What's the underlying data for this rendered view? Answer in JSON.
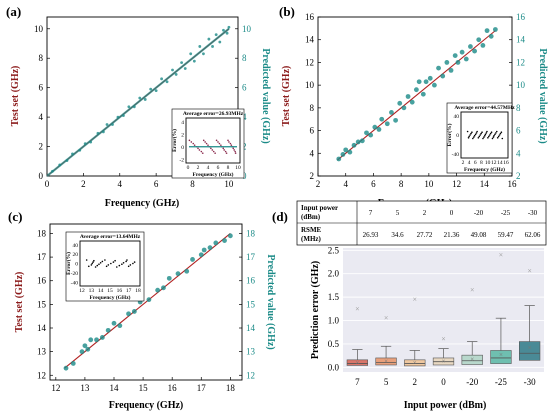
{
  "colors": {
    "red": "#8b1a1a",
    "teal": "#1a8a87",
    "line": "#b22222"
  },
  "chart_data": [
    {
      "panel": "(a)",
      "type": "scatter",
      "xlabel": "Frequency (GHz)",
      "ylabel": "Test set (GHz)",
      "ylabel_right": "Predicted value (GHz)",
      "xlim": [
        0,
        10.5
      ],
      "ylim": [
        0,
        10.8
      ],
      "xticks": [
        0,
        2,
        4,
        6,
        8,
        10
      ],
      "yticks": [
        0,
        2,
        4,
        6,
        8,
        10
      ],
      "ref_line": [
        [
          0,
          0
        ],
        [
          10,
          10
        ]
      ],
      "points": [
        [
          0.3,
          0.32
        ],
        [
          0.7,
          0.75
        ],
        [
          1.1,
          1.05
        ],
        [
          1.4,
          1.5
        ],
        [
          1.8,
          1.75
        ],
        [
          2.1,
          2.2
        ],
        [
          2.4,
          2.3
        ],
        [
          2.8,
          2.9
        ],
        [
          3.1,
          3.0
        ],
        [
          3.3,
          3.5
        ],
        [
          3.6,
          3.5
        ],
        [
          3.9,
          4.0
        ],
        [
          4.2,
          4.1
        ],
        [
          4.5,
          4.7
        ],
        [
          4.8,
          4.7
        ],
        [
          5.1,
          5.3
        ],
        [
          5.4,
          5.2
        ],
        [
          5.7,
          5.9
        ],
        [
          6.0,
          5.8
        ],
        [
          6.3,
          6.6
        ],
        [
          6.6,
          6.4
        ],
        [
          6.9,
          7.2
        ],
        [
          7.1,
          6.9
        ],
        [
          7.4,
          7.7
        ],
        [
          7.6,
          7.3
        ],
        [
          7.9,
          8.3
        ],
        [
          8.1,
          7.8
        ],
        [
          8.4,
          8.8
        ],
        [
          8.6,
          8.3
        ],
        [
          8.9,
          9.3
        ],
        [
          9.1,
          8.8
        ],
        [
          9.3,
          9.6
        ],
        [
          9.5,
          9.1
        ],
        [
          9.7,
          9.9
        ],
        [
          9.9,
          9.7
        ],
        [
          10.0,
          10.1
        ]
      ],
      "inset": {
        "title": "Average error=26.93MHz",
        "xlabel": "Frequency (GHz)",
        "ylabel": "Error(%)",
        "xticks": [
          0,
          2,
          4,
          6,
          8,
          10
        ],
        "yticks": [
          -2,
          0,
          2,
          4
        ]
      }
    },
    {
      "panel": "(b)",
      "type": "scatter",
      "xlabel": "Frequency (GHz)",
      "ylabel": "Test set (GHz)",
      "ylabel_right": "Predicted value (GHz)",
      "xlim": [
        2,
        16
      ],
      "ylim": [
        2,
        16
      ],
      "xticks": [
        2,
        4,
        6,
        8,
        10,
        12,
        14,
        16
      ],
      "yticks": [
        2,
        4,
        6,
        8,
        10,
        12,
        14,
        16
      ],
      "ref_line": [
        [
          3.4,
          3.4
        ],
        [
          14.8,
          14.8
        ]
      ],
      "points": [
        [
          3.5,
          3.5
        ],
        [
          3.8,
          3.9
        ],
        [
          4.0,
          4.3
        ],
        [
          4.3,
          4.1
        ],
        [
          4.6,
          4.7
        ],
        [
          4.9,
          5.0
        ],
        [
          5.2,
          5.1
        ],
        [
          5.5,
          5.8
        ],
        [
          5.8,
          5.6
        ],
        [
          6.1,
          6.3
        ],
        [
          6.4,
          6.1
        ],
        [
          6.6,
          7.0
        ],
        [
          7.0,
          6.6
        ],
        [
          7.3,
          7.6
        ],
        [
          7.6,
          6.9
        ],
        [
          7.9,
          8.4
        ],
        [
          8.2,
          8.0
        ],
        [
          8.5,
          9.0
        ],
        [
          8.8,
          8.5
        ],
        [
          9.1,
          9.6
        ],
        [
          9.3,
          10.3
        ],
        [
          9.6,
          9.2
        ],
        [
          9.8,
          10.3
        ],
        [
          10.1,
          10.6
        ],
        [
          10.4,
          10.0
        ],
        [
          10.7,
          11.5
        ],
        [
          11.0,
          10.8
        ],
        [
          11.3,
          12.0
        ],
        [
          11.6,
          11.3
        ],
        [
          11.9,
          12.6
        ],
        [
          12.1,
          12.0
        ],
        [
          12.4,
          12.9
        ],
        [
          12.7,
          12.3
        ],
        [
          13.0,
          13.4
        ],
        [
          13.3,
          13.0
        ],
        [
          13.6,
          14.0
        ],
        [
          13.9,
          13.5
        ],
        [
          14.2,
          14.8
        ],
        [
          14.5,
          14.3
        ],
        [
          14.8,
          14.9
        ]
      ],
      "inset": {
        "title": "Average error=44.57MHz",
        "xlabel": "Frequency (GHz)",
        "ylabel": "Error(%)",
        "xticks": [
          2,
          4,
          6,
          8,
          10,
          12,
          14,
          16
        ],
        "yticks": [
          -40,
          0,
          40
        ]
      }
    },
    {
      "panel": "(c)",
      "type": "scatter",
      "xlabel": "Frequency (GHz)",
      "ylabel": "Test set (GHz)",
      "ylabel_right": "Predicted value (GHz)",
      "xlim": [
        11.8,
        18.4
      ],
      "ylim": [
        11.8,
        18.4
      ],
      "xticks": [
        12,
        13,
        14,
        15,
        16,
        17,
        18
      ],
      "yticks": [
        12,
        13,
        14,
        15,
        16,
        17,
        18
      ],
      "ref_line": [
        [
          12.3,
          12.3
        ],
        [
          18.0,
          18.0
        ]
      ],
      "points": [
        [
          12.35,
          12.3
        ],
        [
          12.6,
          12.5
        ],
        [
          12.9,
          13.0
        ],
        [
          13.0,
          13.25
        ],
        [
          13.1,
          13.1
        ],
        [
          13.2,
          13.5
        ],
        [
          13.4,
          13.5
        ],
        [
          13.6,
          13.6
        ],
        [
          13.8,
          13.9
        ],
        [
          14.0,
          14.2
        ],
        [
          14.2,
          14.1
        ],
        [
          14.5,
          14.6
        ],
        [
          14.7,
          14.7
        ],
        [
          14.9,
          15.1
        ],
        [
          15.2,
          15.2
        ],
        [
          15.5,
          15.6
        ],
        [
          15.7,
          15.7
        ],
        [
          15.9,
          16.1
        ],
        [
          16.2,
          16.3
        ],
        [
          16.5,
          16.4
        ],
        [
          16.7,
          16.9
        ],
        [
          17.0,
          17.1
        ],
        [
          17.1,
          17.3
        ],
        [
          17.3,
          17.4
        ],
        [
          17.5,
          17.6
        ],
        [
          17.8,
          17.7
        ],
        [
          18.0,
          17.9
        ]
      ],
      "inset": {
        "title": "Average error=13.64MHz",
        "xlabel": "Frequency (GHz)",
        "ylabel": "Error(%)",
        "xticks": [
          12,
          13,
          14,
          15,
          16,
          17,
          18
        ],
        "yticks": [
          -40,
          -20,
          0,
          20,
          40
        ]
      }
    },
    {
      "panel": "(d)",
      "type": "box",
      "xlabel": "Input power (dBm)",
      "ylabel": "Prediction error (GHz)",
      "categories": [
        "7",
        "5",
        "2",
        "0",
        "-20",
        "-25",
        "-30"
      ],
      "ylim": [
        -0.1,
        2.55
      ],
      "yticks": [
        0.0,
        0.5,
        1.0,
        1.5,
        2.0,
        2.5
      ],
      "boxes": [
        {
          "min": 0.0,
          "q1": 0.04,
          "median": 0.08,
          "q3": 0.16,
          "max": 0.38,
          "mean": 0.1,
          "outlier": 1.25,
          "color": "#d9756a"
        },
        {
          "min": 0.0,
          "q1": 0.05,
          "median": 0.1,
          "q3": 0.2,
          "max": 0.45,
          "mean": 0.14,
          "outlier": 1.05,
          "color": "#e8a07c"
        },
        {
          "min": 0.0,
          "q1": 0.03,
          "median": 0.08,
          "q3": 0.16,
          "max": 0.36,
          "mean": 0.1,
          "outlier": 1.45,
          "color": "#efc8a0"
        },
        {
          "min": 0.0,
          "q1": 0.05,
          "median": 0.12,
          "q3": 0.2,
          "max": 0.4,
          "mean": 0.13,
          "outlier": 0.6,
          "color": "#e8d8c2"
        },
        {
          "min": 0.0,
          "q1": 0.06,
          "median": 0.14,
          "q3": 0.26,
          "max": 0.55,
          "mean": 0.18,
          "outlier": 1.65,
          "color": "#b8d8cc"
        },
        {
          "min": 0.0,
          "q1": 0.08,
          "median": 0.2,
          "q3": 0.36,
          "max": 1.05,
          "mean": 0.27,
          "outlier": 2.4,
          "color": "#6fbfb0"
        },
        {
          "min": 0.0,
          "q1": 0.15,
          "median": 0.3,
          "q3": 0.55,
          "max": 1.32,
          "mean": 0.42,
          "outlier": 2.06,
          "color": "#4a8a96"
        }
      ],
      "table": {
        "row1_label": "Input power\n(dBm)",
        "row1": [
          "7",
          "5",
          "2",
          "0",
          "-20",
          "-25",
          "-30"
        ],
        "row2_label": "RSME\n(MHz)",
        "row2": [
          "26.93",
          "34.6",
          "27.72",
          "21.36",
          "49.08",
          "59.47",
          "62.06"
        ]
      }
    }
  ]
}
